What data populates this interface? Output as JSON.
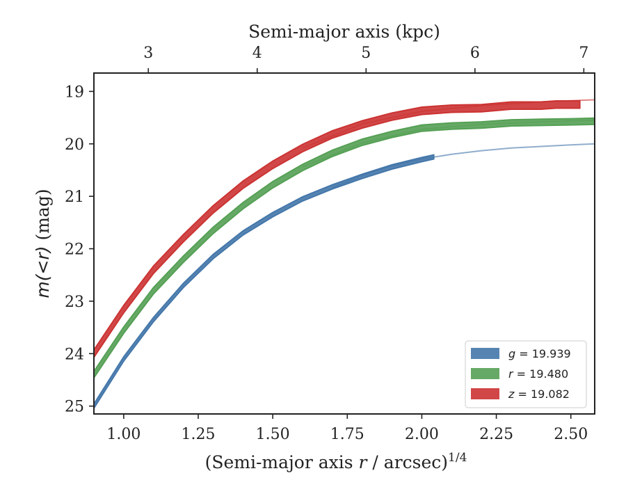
{
  "chart_data": {
    "type": "line",
    "xlabel": "(Semi-major axis r / arcsec)^1/4",
    "xlabel_parts": {
      "prefix": "(Semi-major axis ",
      "var": "r",
      "suffix": " / arcsec)",
      "exponent": "1/4"
    },
    "ylabel": "m(<r) (mag)",
    "ylabel_parts": {
      "math": "m(<r)",
      "unit": " (mag)"
    },
    "top_xlabel": "Semi-major axis (kpc)",
    "xlim": [
      0.9,
      2.58
    ],
    "ylim": [
      25.15,
      18.65
    ],
    "y_inverted": true,
    "top_xlim": [
      2.5,
      7.1
    ],
    "x_ticks": [
      {
        "value": 1.0,
        "label": "1.00"
      },
      {
        "value": 1.25,
        "label": "1.25"
      },
      {
        "value": 1.5,
        "label": "1.50"
      },
      {
        "value": 1.75,
        "label": "1.75"
      },
      {
        "value": 2.0,
        "label": "2.00"
      },
      {
        "value": 2.25,
        "label": "2.25"
      },
      {
        "value": 2.5,
        "label": "2.50"
      }
    ],
    "y_ticks": [
      {
        "value": 19,
        "label": "19"
      },
      {
        "value": 20,
        "label": "20"
      },
      {
        "value": 21,
        "label": "21"
      },
      {
        "value": 22,
        "label": "22"
      },
      {
        "value": 23,
        "label": "23"
      },
      {
        "value": 24,
        "label": "24"
      },
      {
        "value": 25,
        "label": "25"
      }
    ],
    "top_ticks": [
      {
        "value": 3,
        "label": "3"
      },
      {
        "value": 4,
        "label": "4"
      },
      {
        "value": 5,
        "label": "5"
      },
      {
        "value": 6,
        "label": "6"
      },
      {
        "value": 7,
        "label": "7"
      }
    ],
    "grid": false,
    "legend_position": "lower-right",
    "series": [
      {
        "name": "g = 19.939",
        "legend_var": "g",
        "legend_value": "= 19.939",
        "color": "#4477aa",
        "band_halfwidth": 0.04,
        "x": [
          0.9,
          1.0,
          1.1,
          1.2,
          1.3,
          1.4,
          1.5,
          1.6,
          1.7,
          1.8,
          1.9,
          2.0,
          2.04
        ],
        "y": [
          25.0,
          24.1,
          23.35,
          22.7,
          22.15,
          21.7,
          21.35,
          21.05,
          20.82,
          20.62,
          20.44,
          20.3,
          20.25
        ],
        "model_x": [
          1.7,
          1.8,
          1.9,
          2.0,
          2.1,
          2.2,
          2.3,
          2.4,
          2.5,
          2.58
        ],
        "model_y": [
          20.84,
          20.6,
          20.42,
          20.29,
          20.2,
          20.13,
          20.08,
          20.05,
          20.02,
          20.0
        ]
      },
      {
        "name": "r = 19.480",
        "legend_var": "r",
        "legend_value": "= 19.480",
        "color": "#55a055",
        "band_halfwidth": 0.06,
        "x": [
          0.9,
          1.0,
          1.1,
          1.2,
          1.3,
          1.4,
          1.5,
          1.6,
          1.7,
          1.8,
          1.9,
          2.0,
          2.1,
          2.2,
          2.3,
          2.4,
          2.5,
          2.58
        ],
        "y": [
          24.4,
          23.55,
          22.8,
          22.2,
          21.65,
          21.18,
          20.78,
          20.45,
          20.18,
          19.97,
          19.82,
          19.7,
          19.66,
          19.64,
          19.6,
          19.59,
          19.58,
          19.57
        ],
        "model_x": [
          1.6,
          1.8,
          2.0,
          2.2,
          2.4,
          2.58
        ],
        "model_y": [
          20.44,
          19.98,
          19.72,
          19.63,
          19.58,
          19.55
        ]
      },
      {
        "name": "z = 19.082",
        "legend_var": "z",
        "legend_value": "= 19.082",
        "color": "#cc3333",
        "band_halfwidth": 0.07,
        "x": [
          0.9,
          1.0,
          1.1,
          1.2,
          1.3,
          1.4,
          1.5,
          1.6,
          1.7,
          1.8,
          1.9,
          2.0,
          2.1,
          2.2,
          2.3,
          2.4,
          2.45,
          2.53
        ],
        "y": [
          24.0,
          23.15,
          22.4,
          21.8,
          21.25,
          20.78,
          20.4,
          20.08,
          19.82,
          19.63,
          19.48,
          19.37,
          19.33,
          19.32,
          19.27,
          19.27,
          19.25,
          19.25
        ],
        "model_x": [
          1.6,
          1.8,
          2.0,
          2.2,
          2.4,
          2.58
        ],
        "model_y": [
          20.08,
          19.62,
          19.38,
          19.27,
          19.2,
          19.16
        ]
      }
    ]
  }
}
